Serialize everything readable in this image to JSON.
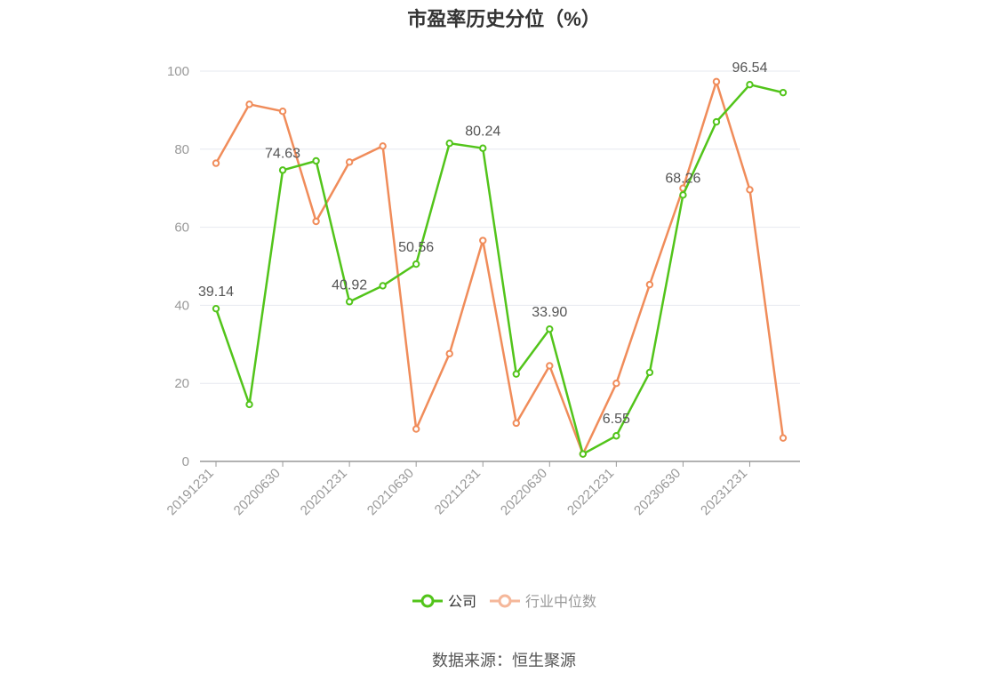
{
  "page_title": "市盈率历史分位（%）",
  "source": "数据来源：恒生聚源",
  "colors": {
    "company": "#52c41a",
    "industry": "#f08c5a",
    "industry_legend": "#f5b79a",
    "grid": "#e6e8ef",
    "axis": "#999999"
  },
  "chart_data": {
    "type": "line",
    "title": "市盈率历史分位（%）",
    "xlabel": "",
    "ylabel": "",
    "ylim": [
      0,
      100
    ],
    "yticks": [
      0,
      20,
      40,
      60,
      80,
      100
    ],
    "grid": true,
    "legend_position": "bottom-center",
    "x": [
      "20191231",
      "20200331",
      "20200630",
      "20200930",
      "20201231",
      "20210331",
      "20210630",
      "20210930",
      "20211231",
      "20220331",
      "20220630",
      "20220930",
      "20221231",
      "20230331",
      "20230630",
      "20230930",
      "20231231",
      "20240331"
    ],
    "x_tick_labels": [
      "20191231",
      "20200630",
      "20201231",
      "20210630",
      "20211231",
      "20220630",
      "20221231",
      "20230630",
      "20231231"
    ],
    "series": [
      {
        "name": "公司",
        "color": "#52c41a",
        "values": [
          39.14,
          14.6,
          74.63,
          77.0,
          40.92,
          45.0,
          50.56,
          81.5,
          80.24,
          22.4,
          33.9,
          1.9,
          6.55,
          22.8,
          68.26,
          87.0,
          96.54,
          94.5
        ],
        "labels": [
          "39.14",
          "",
          "74.63",
          "",
          "40.92",
          "",
          "50.56",
          "",
          "80.24",
          "",
          "33.90",
          "",
          "6.55",
          "",
          "68.26",
          "",
          "96.54",
          ""
        ]
      },
      {
        "name": "行业中位数",
        "color": "#f08c5a",
        "values": [
          76.4,
          91.5,
          89.7,
          61.5,
          76.7,
          80.8,
          8.3,
          27.6,
          56.6,
          9.8,
          24.5,
          1.9,
          20.0,
          45.3,
          70.0,
          97.3,
          69.6,
          6.0
        ],
        "labels": []
      }
    ]
  }
}
